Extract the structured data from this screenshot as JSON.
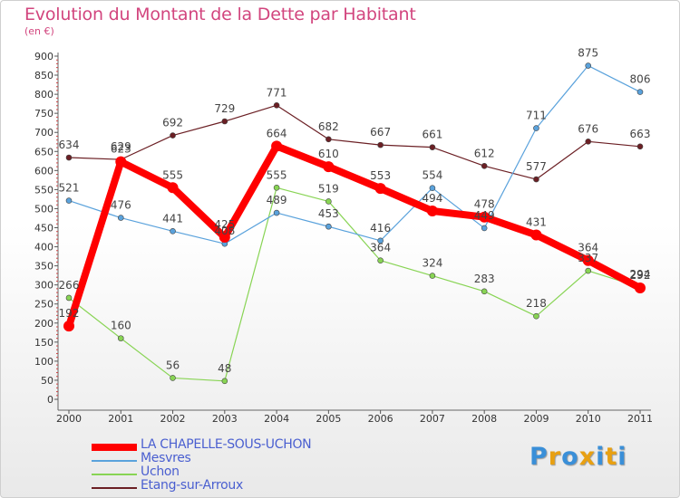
{
  "chart_data": {
    "type": "line",
    "title": "Evolution du Montant de la Dette par Habitant",
    "subtitle": "(en €)",
    "x": [
      "2000",
      "2001",
      "2002",
      "2003",
      "2004",
      "2005",
      "2006",
      "2007",
      "2008",
      "2009",
      "2010",
      "2011"
    ],
    "ylim": [
      0,
      900
    ],
    "yticks": [
      0,
      50,
      100,
      150,
      200,
      250,
      300,
      350,
      400,
      450,
      500,
      550,
      600,
      650,
      700,
      750,
      800,
      850,
      900
    ],
    "grid": false,
    "legend_position": "bottom-left",
    "series": [
      {
        "name": "LA CHAPELLE-SOUS-UCHON",
        "color": "#ff0000",
        "values": [
          192,
          623,
          555,
          425,
          664,
          610,
          553,
          494,
          478,
          431,
          364,
          292
        ],
        "labels": [
          "192",
          "623",
          "555",
          "425",
          "664",
          "610",
          "553",
          "494",
          "478",
          "431",
          "364",
          "292"
        ]
      },
      {
        "name": "Mesvres",
        "color": "#5aa2dc",
        "values": [
          521,
          476,
          441,
          408,
          489,
          453,
          416,
          554,
          449,
          711,
          875,
          806
        ],
        "labels": [
          "521",
          "476",
          "441",
          "408",
          "489",
          "453",
          "416",
          "554",
          "449",
          "711",
          "875",
          "806"
        ]
      },
      {
        "name": "Uchon",
        "color": "#88d454",
        "values": [
          266,
          160,
          56,
          48,
          555,
          519,
          364,
          324,
          283,
          218,
          337,
          294
        ],
        "labels": [
          "266",
          "160",
          "56",
          "48",
          "555",
          "519",
          "364",
          "324",
          "283",
          "218",
          "337",
          "294"
        ]
      },
      {
        "name": "Etang-sur-Arroux",
        "color": "#6b1f24",
        "values": [
          634,
          629,
          692,
          729,
          771,
          682,
          667,
          661,
          612,
          577,
          676,
          663
        ],
        "labels": [
          "634",
          "629",
          "692",
          "729",
          "771",
          "682",
          "667",
          "661",
          "612",
          "577",
          "676",
          "663"
        ]
      }
    ]
  },
  "logo": {
    "letters": [
      "P",
      "r",
      "o",
      "x",
      "i",
      "t",
      "i"
    ],
    "colors": [
      "#3a8fd8",
      "#e8a012",
      "#3a8fd8",
      "#e8a012",
      "#3a8fd8",
      "#e8a012",
      "#3a8fd8"
    ]
  }
}
